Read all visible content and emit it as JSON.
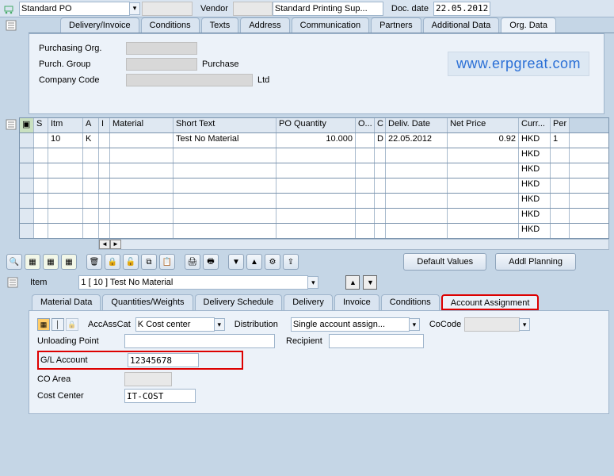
{
  "header": {
    "po_type": "Standard PO",
    "vendor_label": "Vendor",
    "vendor_value": "Standard Printing Sup...",
    "doc_date_label": "Doc. date",
    "doc_date": "22.05.2012"
  },
  "main_tabs": [
    "Delivery/Invoice",
    "Conditions",
    "Texts",
    "Address",
    "Communication",
    "Partners",
    "Additional Data",
    "Org. Data"
  ],
  "main_tab_active": 7,
  "org": {
    "rows": [
      {
        "label": "Purchasing Org.",
        "text": ""
      },
      {
        "label": "Purch. Group",
        "text": "Purchase"
      },
      {
        "label": "Company Code",
        "text": "Ltd"
      }
    ],
    "watermark": "www.erpgreat.com"
  },
  "grid": {
    "columns": [
      {
        "key": "S",
        "w": 18
      },
      {
        "key": "Itm",
        "w": 44
      },
      {
        "key": "A",
        "w": 20
      },
      {
        "key": "I",
        "w": 14
      },
      {
        "key": "Material",
        "w": 80
      },
      {
        "key": "Short Text",
        "w": 130
      },
      {
        "key": "PO Quantity",
        "w": 100
      },
      {
        "key": "O...",
        "w": 24
      },
      {
        "key": "C",
        "w": 14
      },
      {
        "key": "Deliv. Date",
        "w": 78
      },
      {
        "key": "Net Price",
        "w": 90
      },
      {
        "key": "Curr...",
        "w": 40
      },
      {
        "key": "Per",
        "w": 24
      }
    ],
    "rows": [
      {
        "S": "",
        "Itm": "10",
        "A": "K",
        "I": "",
        "Material": "",
        "Short Text": "Test No Material",
        "PO Quantity": "10.000",
        "O...": "",
        "C": "D",
        "Deliv. Date": "22.05.2012",
        "Net Price": "0.92",
        "Curr...": "HKD",
        "Per": "1"
      },
      {
        "Curr...": "HKD"
      },
      {
        "Curr...": "HKD"
      },
      {
        "Curr...": "HKD"
      },
      {
        "Curr...": "HKD"
      },
      {
        "Curr...": "HKD"
      },
      {
        "Curr...": "HKD"
      }
    ]
  },
  "buttons": {
    "default_values": "Default Values",
    "addl_planning": "Addl Planning"
  },
  "item_line": {
    "label": "Item",
    "value": "1 [ 10 ] Test No Material"
  },
  "sub_tabs": [
    "Material Data",
    "Quantities/Weights",
    "Delivery Schedule",
    "Delivery",
    "Invoice",
    "Conditions",
    "Account Assignment"
  ],
  "sub_tab_active": 6,
  "acct": {
    "accasscat_label": "AccAssCat",
    "accasscat_value": "K Cost center",
    "distribution_label": "Distribution",
    "distribution_value": "Single account assign...",
    "cocode_label": "CoCode",
    "rows": [
      {
        "label": "Unloading Point",
        "v": ""
      },
      {
        "label": "Recipient",
        "v": ""
      }
    ],
    "gl_label": "G/L Account",
    "gl_value": "12345678",
    "coarea_label": "CO Area",
    "costcenter_label": "Cost Center",
    "costcenter_value": "IT-COST"
  }
}
